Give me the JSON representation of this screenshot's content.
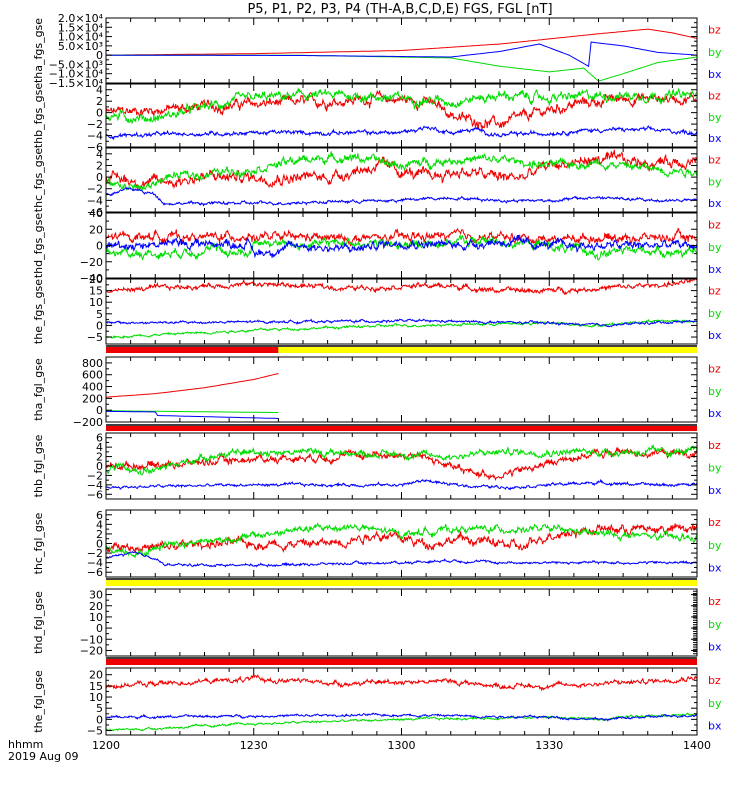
{
  "chart_data": {
    "type": "line",
    "title": "P5, P1, P2, P3, P4 (TH-A,B,C,D,E) FGS, FGL [nT]",
    "x_axis": {
      "label_line1": "hhmm",
      "label_line2": "2019 Aug 09",
      "range": [
        "12:00",
        "14:00"
      ],
      "ticks": [
        "1200",
        "1230",
        "1300",
        "1330",
        "1400"
      ],
      "minor_tick_interval_min": 5
    },
    "legend_labels": [
      "bz",
      "by",
      "bx"
    ],
    "colors": {
      "bx": "#0000ff",
      "by": "#00dd00",
      "bz": "#ee0000",
      "axis": "#000000"
    },
    "panels": [
      {
        "ylabel": "tha_fgs_gse",
        "ylim": [
          -15000,
          20000
        ],
        "tick_labels": [
          "2.0×10⁴",
          "1.5×10⁴",
          "1.0×10⁴",
          "5.0×10³",
          "0",
          "−5.0×10³",
          "−1.0×10⁴",
          "−1.5×10⁴"
        ],
        "tick_values": [
          20000,
          15000,
          10000,
          5000,
          0,
          -5000,
          -10000,
          -15000
        ],
        "series": [
          {
            "name": "bz",
            "t": [
              0,
              30,
              60,
              80,
              100,
              110,
              115,
              120
            ],
            "v": [
              0,
              800,
              2500,
              6000,
              11500,
              14000,
              12000,
              9000
            ],
            "noise": 0
          },
          {
            "name": "by",
            "t": [
              0,
              40,
              70,
              80,
              90,
              97,
              100,
              105,
              112,
              120
            ],
            "v": [
              0,
              -100,
              -1500,
              -6000,
              -9000,
              -7000,
              -14000,
              -10000,
              -4000,
              -1000
            ],
            "noise": 0
          },
          {
            "name": "bx",
            "t": [
              0,
              40,
              70,
              80,
              88,
              94,
              98,
              98.5,
              105,
              112,
              120
            ],
            "v": [
              0,
              -200,
              -1000,
              2000,
              6000,
              0,
              -6000,
              7000,
              5000,
              1500,
              0
            ],
            "noise": 0
          }
        ]
      },
      {
        "ylabel": "thb_fgs_gse",
        "ylim": [
          -6,
          5
        ],
        "tick_labels": [
          "4",
          "2",
          "0",
          "−2",
          "−4",
          "−6"
        ],
        "tick_values": [
          4,
          2,
          0,
          -2,
          -4,
          -6
        ],
        "series": [
          {
            "name": "bz",
            "t": [
              0,
              10,
              20,
              30,
              45,
              55,
              65,
              72,
              80,
              88,
              95,
              105,
              112,
              120
            ],
            "v": [
              0,
              0.5,
              1,
              1.5,
              2,
              2.5,
              2,
              -1,
              -2,
              0,
              1.5,
              2.5,
              2.5,
              2.5
            ],
            "noise": 1.0
          },
          {
            "name": "by",
            "t": [
              0,
              10,
              20,
              30,
              40,
              50,
              60,
              70,
              80,
              90,
              100,
              110,
              120
            ],
            "v": [
              -0.5,
              -1,
              1,
              2.5,
              3,
              3,
              2.5,
              2,
              3,
              2.5,
              3,
              3,
              3
            ],
            "noise": 0.9
          },
          {
            "name": "bx",
            "t": [
              0,
              30,
              60,
              65,
              70,
              75,
              80,
              90,
              100,
              110,
              120
            ],
            "v": [
              -4,
              -3.5,
              -3.5,
              -2.5,
              -3.5,
              -3,
              -4,
              -3.5,
              -3,
              -3,
              -3.5
            ],
            "noise": 0.4
          }
        ]
      },
      {
        "ylabel": "thc_fgs_gse",
        "ylim": [
          -6,
          5
        ],
        "tick_labels": [
          "4",
          "2",
          "0",
          "−2",
          "−4",
          "−6"
        ],
        "tick_values": [
          4,
          2,
          0,
          -2,
          -4,
          -6
        ],
        "series": [
          {
            "name": "bz",
            "t": [
              0,
              10,
              20,
              30,
              45,
              55,
              65,
              72,
              80,
              85,
              90,
              100,
              110,
              120
            ],
            "v": [
              0,
              -1,
              0,
              0,
              0,
              2,
              0,
              1,
              0,
              0,
              2,
              3,
              2.5,
              3
            ],
            "noise": 1.1
          },
          {
            "name": "by",
            "t": [
              0,
              8,
              12,
              20,
              30,
              40,
              50,
              60,
              70,
              80,
              90,
              100,
              110,
              120
            ],
            "v": [
              -1,
              -2,
              0,
              0.5,
              1.5,
              3,
              3.5,
              2,
              3,
              3,
              2,
              2.5,
              1.5,
              1
            ],
            "noise": 0.8
          },
          {
            "name": "bx",
            "t": [
              0,
              5,
              10,
              12,
              20,
              30,
              60,
              70,
              80,
              90,
              100,
              110,
              120
            ],
            "v": [
              -3,
              -2,
              -3,
              -4.5,
              -4.5,
              -4.5,
              -4,
              -3.5,
              -4,
              -4,
              -3.5,
              -4,
              -4
            ],
            "noise": 0.3
          }
        ]
      },
      {
        "ylabel": "thd_fgs_gse",
        "ylim": [
          -40,
          40
        ],
        "tick_labels": [
          "40",
          "20",
          "0",
          "−20",
          "−40"
        ],
        "tick_values": [
          40,
          20,
          0,
          -20,
          -40
        ],
        "series": [
          {
            "name": "bz",
            "t": [
              0,
              10,
              20,
              29,
              30,
              40,
              50,
              60,
              70,
              80,
              90,
              100,
              110,
              120
            ],
            "v": [
              10,
              12,
              10,
              12,
              10,
              10,
              8,
              10,
              12,
              10,
              8,
              10,
              10,
              10
            ],
            "noise": 6
          },
          {
            "name": "by",
            "t": [
              0,
              10,
              20,
              29,
              30,
              40,
              50,
              60,
              70,
              80,
              90,
              100,
              110,
              120
            ],
            "v": [
              -8,
              -10,
              -5,
              -10,
              5,
              0,
              5,
              0,
              5,
              5,
              0,
              -10,
              -5,
              -10
            ],
            "noise": 6
          },
          {
            "name": "bx",
            "t": [
              0,
              10,
              20,
              29,
              30,
              40,
              50,
              60,
              70,
              80,
              90,
              100,
              110,
              120
            ],
            "v": [
              0,
              2,
              3,
              2,
              -10,
              0,
              -5,
              5,
              0,
              5,
              0,
              0,
              0,
              0
            ],
            "noise": 6
          }
        ]
      },
      {
        "ylabel": "the_fgs_gse",
        "ylim": [
          -8,
          20
        ],
        "tick_labels": [
          "20",
          "15",
          "10",
          "5",
          "0",
          "−5"
        ],
        "tick_values": [
          20,
          15,
          10,
          5,
          0,
          -5
        ],
        "series": [
          {
            "name": "bz",
            "t": [
              0,
              20,
              30,
              40,
              50,
              60,
              70,
              80,
              90,
              100,
              110,
              120
            ],
            "v": [
              15,
              17,
              18,
              17,
              16,
              17,
              17,
              15,
              15,
              16,
              17,
              19
            ],
            "noise": 1.2
          },
          {
            "name": "by",
            "t": [
              0,
              30,
              60,
              90,
              100,
              110,
              120
            ],
            "v": [
              -5,
              -2,
              0,
              1,
              0,
              2,
              2
            ],
            "noise": 0.6
          },
          {
            "name": "bx",
            "t": [
              0,
              30,
              60,
              90,
              100,
              110,
              120
            ],
            "v": [
              1,
              1.5,
              2,
              1,
              0,
              1,
              2
            ],
            "noise": 0.6
          }
        ]
      },
      {
        "ylabel": "tha_fgl_gse",
        "ylim": [
          -200,
          900
        ],
        "tick_labels": [
          "800",
          "600",
          "400",
          "200",
          "0",
          "−200"
        ],
        "tick_values": [
          800,
          600,
          400,
          200,
          0,
          -200
        ],
        "series": [
          {
            "name": "bz",
            "t": [
              0,
              10,
              20,
              30,
              35
            ],
            "v": [
              220,
              280,
              380,
              520,
              620
            ],
            "noise": 0
          },
          {
            "name": "by",
            "t": [
              0,
              35
            ],
            "v": [
              -10,
              -40
            ],
            "noise": 0
          },
          {
            "name": "bx",
            "t": [
              0,
              10,
              10.3,
              35
            ],
            "v": [
              -20,
              -30,
              -90,
              -140
            ],
            "noise": 0
          }
        ]
      },
      {
        "ylabel": "thb_fgl_gse",
        "ylim": [
          -7,
          7
        ],
        "tick_labels": [
          "6",
          "4",
          "2",
          "0",
          "−2",
          "−4",
          "−6"
        ],
        "tick_values": [
          6,
          4,
          2,
          0,
          -2,
          -4,
          -6
        ],
        "series": [
          {
            "name": "bz",
            "t": [
              0,
              15,
              30,
              45,
              55,
              65,
              72,
              80,
              88,
              95,
              105,
              120
            ],
            "v": [
              0,
              0.5,
              1.5,
              2,
              2.5,
              2,
              -1,
              -2,
              0,
              2,
              3,
              2.5
            ],
            "noise": 0.9
          },
          {
            "name": "by",
            "t": [
              0,
              10,
              20,
              30,
              40,
              60,
              70,
              80,
              90,
              100,
              110,
              120
            ],
            "v": [
              -0.5,
              -1,
              2,
              3,
              3,
              2.5,
              2,
              3,
              3,
              3,
              3,
              3
            ],
            "noise": 0.8
          },
          {
            "name": "bx",
            "t": [
              0,
              30,
              60,
              65,
              70,
              80,
              90,
              100,
              110,
              120
            ],
            "v": [
              -4.5,
              -4,
              -4,
              -3,
              -4,
              -4.5,
              -4,
              -3.5,
              -4,
              -4
            ],
            "noise": 0.35
          }
        ]
      },
      {
        "ylabel": "thc_fgl_gse",
        "ylim": [
          -7,
          7
        ],
        "tick_labels": [
          "6",
          "4",
          "2",
          "0",
          "−2",
          "−4",
          "−6"
        ],
        "tick_values": [
          6,
          4,
          2,
          0,
          -2,
          -4,
          -6
        ],
        "series": [
          {
            "name": "bz",
            "t": [
              0,
              10,
              20,
              30,
              45,
              55,
              65,
              72,
              80,
              85,
              90,
              100,
              110,
              120
            ],
            "v": [
              0,
              -1,
              0,
              0,
              0,
              2,
              0,
              1,
              0,
              -1,
              2,
              3,
              3,
              3
            ],
            "noise": 1.1
          },
          {
            "name": "by",
            "t": [
              0,
              8,
              12,
              20,
              30,
              40,
              50,
              60,
              70,
              80,
              90,
              100,
              110,
              120
            ],
            "v": [
              -1,
              -2,
              0,
              0.5,
              1.5,
              3,
              3.5,
              2,
              3,
              3,
              3,
              2,
              1.5,
              1
            ],
            "noise": 0.8
          },
          {
            "name": "bx",
            "t": [
              0,
              5,
              10,
              12,
              20,
              30,
              60,
              70,
              80,
              90,
              100,
              110,
              120
            ],
            "v": [
              -3,
              -2,
              -3,
              -4.5,
              -4.5,
              -4.5,
              -4,
              -3.5,
              -4,
              -4,
              -4,
              -4,
              -4
            ],
            "noise": 0.3
          }
        ]
      },
      {
        "ylabel": "thd_fgl_gse",
        "ylim": [
          -25,
          35
        ],
        "tick_labels": [
          "30",
          "20",
          "10",
          "0",
          "−10",
          "−20"
        ],
        "tick_values": [
          30,
          20,
          10,
          0,
          -10,
          -20
        ],
        "series": []
      },
      {
        "ylabel": "the_fgl_gse",
        "ylim": [
          -7,
          23
        ],
        "tick_labels": [
          "20",
          "15",
          "10",
          "5",
          "0",
          "−5"
        ],
        "tick_values": [
          20,
          15,
          10,
          5,
          0,
          -5
        ],
        "series": [
          {
            "name": "bz",
            "t": [
              0,
              20,
              30,
              40,
              50,
              60,
              70,
              80,
              90,
              100,
              110,
              120
            ],
            "v": [
              15,
              17,
              18,
              17,
              16,
              17,
              17,
              15,
              15,
              16,
              17,
              19
            ],
            "noise": 1.2
          },
          {
            "name": "by",
            "t": [
              0,
              30,
              60,
              90,
              100,
              110,
              120
            ],
            "v": [
              -5,
              -2,
              0,
              1,
              0,
              2,
              2
            ],
            "noise": 0.6
          },
          {
            "name": "bx",
            "t": [
              0,
              30,
              60,
              90,
              100,
              110,
              120
            ],
            "v": [
              1,
              1.5,
              2,
              1,
              0,
              1,
              2
            ],
            "noise": 0.6
          }
        ]
      }
    ],
    "status_bars": [
      {
        "after_panel": 5,
        "segments": [
          {
            "from_min": 0,
            "to_min": 35,
            "color": "#ee0000"
          },
          {
            "from_min": 35,
            "to_min": 120,
            "color": "#ffff00"
          }
        ]
      },
      {
        "after_panel": 6,
        "segments": [
          {
            "from_min": 0,
            "to_min": 120,
            "color": "#ee0000"
          }
        ]
      },
      {
        "after_panel": 8,
        "segments": [
          {
            "from_min": 0,
            "to_min": 120,
            "color": "#ffff00"
          }
        ]
      },
      {
        "after_panel": 9,
        "segments": [
          {
            "from_min": 0,
            "to_min": 120,
            "color": "#ee0000"
          }
        ]
      }
    ]
  }
}
